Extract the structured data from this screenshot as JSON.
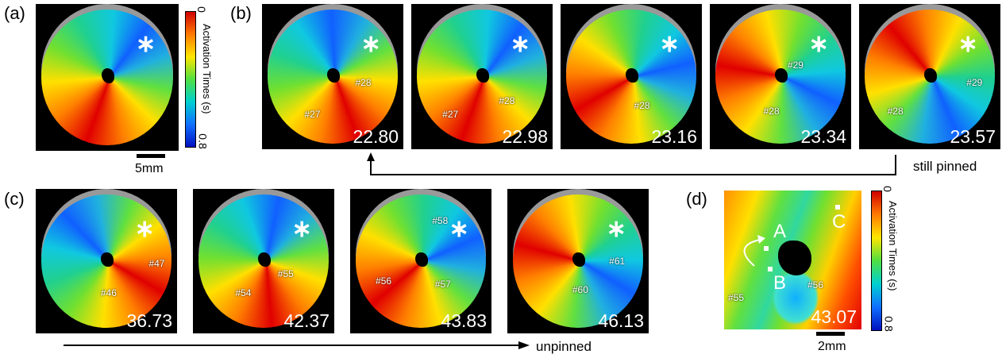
{
  "panel_a": {
    "label": "(a)",
    "colorbar": {
      "title": "Activation Times (s)",
      "min": "0",
      "max": "0.8"
    },
    "scalebar": "5mm"
  },
  "panel_b": {
    "label": "(b)",
    "frames": [
      {
        "time": "22.80",
        "waves": [
          "#27",
          "#28"
        ]
      },
      {
        "time": "22.98",
        "waves": [
          "#27",
          "#28"
        ]
      },
      {
        "time": "23.16",
        "waves": [
          "#28"
        ]
      },
      {
        "time": "23.34",
        "waves": [
          "#29",
          "#28"
        ]
      },
      {
        "time": "23.57",
        "waves": [
          "#29",
          "#28"
        ]
      }
    ],
    "note": "still pinned"
  },
  "panel_c": {
    "label": "(c)",
    "frames": [
      {
        "time": "36.73",
        "waves": [
          "#47",
          "#46"
        ]
      },
      {
        "time": "42.37",
        "waves": [
          "#55",
          "#54"
        ]
      },
      {
        "time": "43.83",
        "waves": [
          "#58",
          "#56",
          "#57"
        ]
      },
      {
        "time": "46.13",
        "waves": [
          "#61",
          "#60"
        ]
      }
    ],
    "note": "unpinned"
  },
  "panel_d": {
    "label": "(d)",
    "points": [
      "A",
      "B",
      "C"
    ],
    "waves": [
      "#55",
      "#56"
    ],
    "time": "43.07",
    "colorbar": {
      "title": "Activation Times (s)",
      "min": "0",
      "max": "0.8"
    },
    "scalebar": "2mm"
  }
}
